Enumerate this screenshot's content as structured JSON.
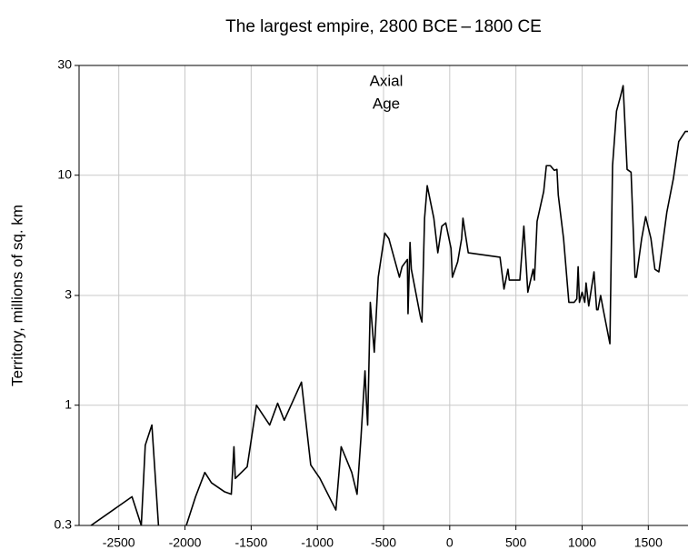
{
  "chart_data": {
    "type": "line",
    "title": "The largest empire, 2800 BCE – 1800 CE",
    "y_label": "Territory, millions of sq. km",
    "annotation": [
      "Axial",
      "Age"
    ],
    "log_y": true,
    "grid": true,
    "xlim": [
      -2800,
      1800
    ],
    "ylim": [
      0.3,
      30
    ],
    "xticks": [
      -2500,
      -2000,
      -1500,
      -1000,
      -500,
      0,
      500,
      1000,
      1500
    ],
    "yticks": [
      0.3,
      1,
      3,
      10,
      30
    ],
    "x": [
      -2710,
      -2400,
      -2330,
      -2300,
      -2250,
      -2200,
      -2100,
      -1990,
      -1920,
      -1850,
      -1800,
      -1700,
      -1650,
      -1630,
      -1620,
      -1530,
      -1460,
      -1360,
      -1300,
      -1250,
      -1120,
      -1050,
      -980,
      -860,
      -820,
      -740,
      -700,
      -670,
      -640,
      -630,
      -620,
      -600,
      -570,
      -540,
      -490,
      -460,
      -380,
      -360,
      -320,
      -315,
      -300,
      -290,
      -220,
      -210,
      -190,
      -170,
      -120,
      -90,
      -60,
      -30,
      10,
      20,
      60,
      90,
      100,
      140,
      380,
      410,
      440,
      450,
      530,
      560,
      590,
      630,
      640,
      660,
      710,
      730,
      760,
      790,
      810,
      820,
      860,
      900,
      940,
      960,
      970,
      980,
      1000,
      1020,
      1030,
      1050,
      1090,
      1110,
      1120,
      1140,
      1160,
      1210,
      1230,
      1260,
      1290,
      1310,
      1340,
      1370,
      1400,
      1410,
      1450,
      1480,
      1520,
      1550,
      1580,
      1640,
      1690,
      1730,
      1780,
      1800
    ],
    "series": [
      {
        "color": "#000000",
        "values": [
          0.3,
          0.4,
          0.3,
          0.67,
          0.82,
          0.3,
          null,
          0.3,
          0.4,
          0.51,
          0.46,
          0.42,
          0.41,
          0.66,
          0.48,
          0.54,
          1.0,
          0.82,
          1.02,
          0.86,
          1.26,
          0.55,
          0.48,
          0.35,
          0.66,
          0.51,
          0.41,
          0.73,
          1.41,
          1.05,
          0.82,
          2.8,
          1.7,
          3.6,
          5.6,
          5.3,
          3.6,
          4.0,
          4.3,
          2.5,
          5.1,
          3.9,
          2.4,
          2.3,
          6.5,
          9.0,
          6.5,
          4.6,
          6.0,
          6.2,
          4.8,
          3.6,
          4.2,
          5.3,
          6.5,
          4.6,
          4.4,
          3.2,
          3.9,
          3.5,
          3.5,
          6.0,
          3.1,
          3.9,
          3.5,
          6.3,
          8.5,
          11,
          11,
          10.5,
          10.6,
          8.2,
          5.3,
          2.8,
          2.8,
          2.9,
          4.0,
          2.8,
          3.1,
          2.8,
          3.4,
          2.7,
          3.8,
          2.6,
          2.6,
          3.0,
          2.6,
          1.85,
          11,
          19,
          22,
          24.5,
          10.6,
          10.3,
          3.6,
          3.6,
          5.3,
          6.6,
          5.3,
          3.9,
          3.8,
          6.9,
          9.7,
          14,
          15.5,
          15.5
        ]
      }
    ]
  }
}
